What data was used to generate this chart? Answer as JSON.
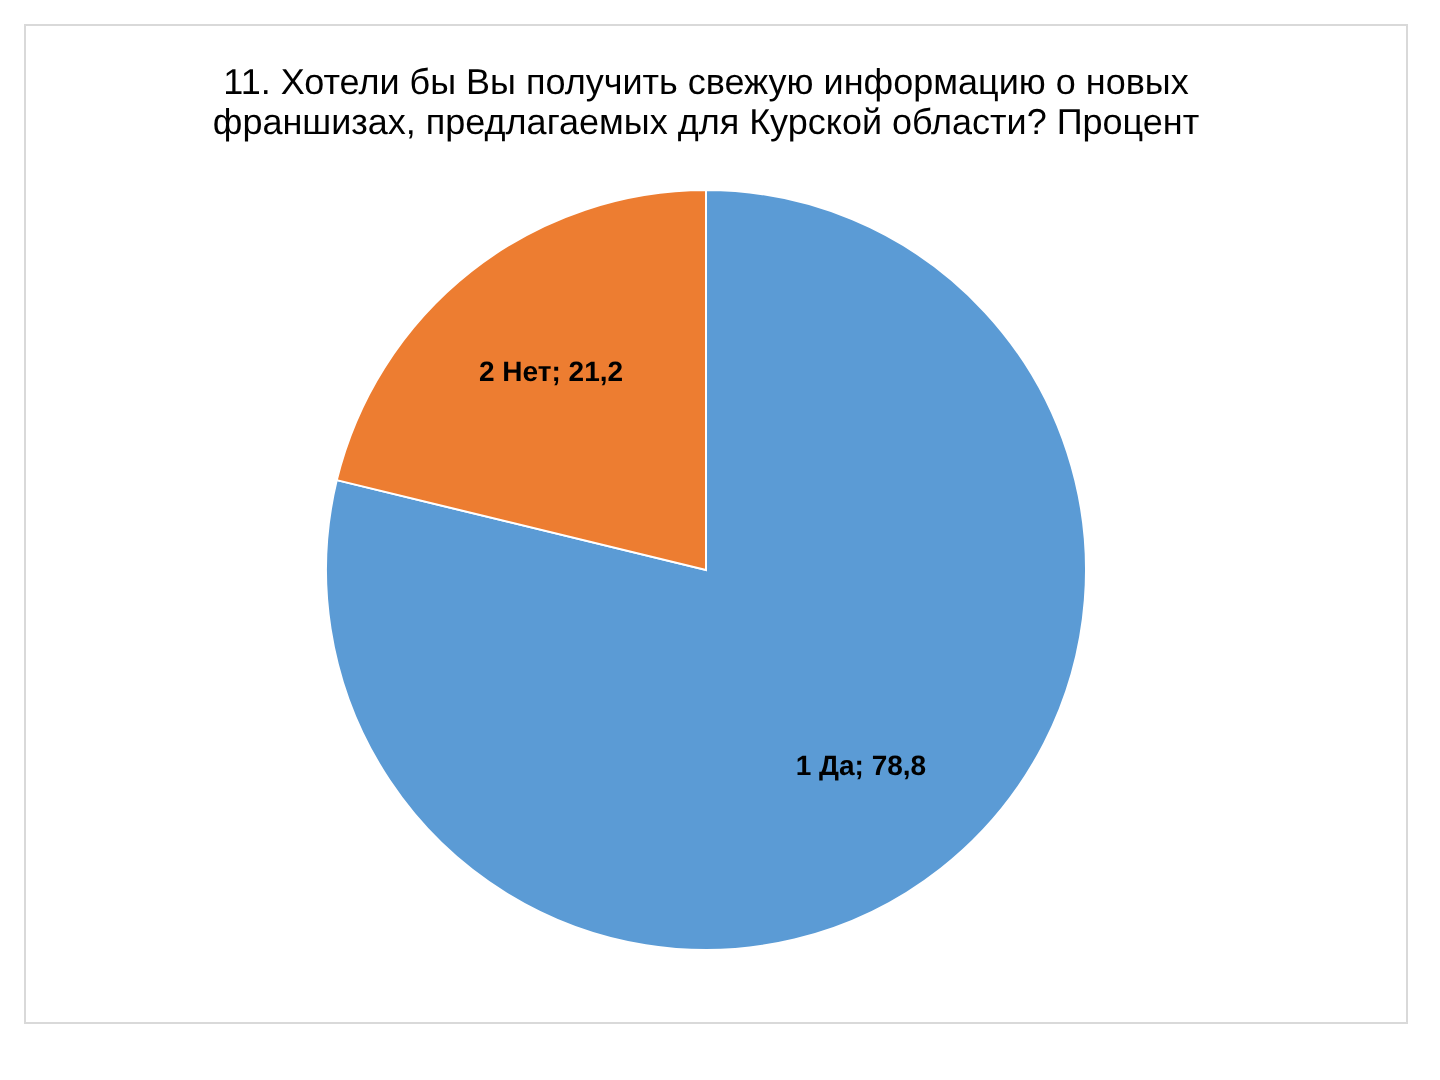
{
  "chart_data": {
    "type": "pie",
    "title": "11. Хотели бы Вы получить свежую информацию о новых франшизах, предлагаемых для Курской области? Процент",
    "categories": [
      "1 Да",
      "2 Нет"
    ],
    "values": [
      78.8,
      21.2
    ],
    "colors": [
      "#5b9bd5",
      "#ed7d31"
    ],
    "value_labels": [
      "78,8",
      "21,2"
    ],
    "legend": false
  }
}
